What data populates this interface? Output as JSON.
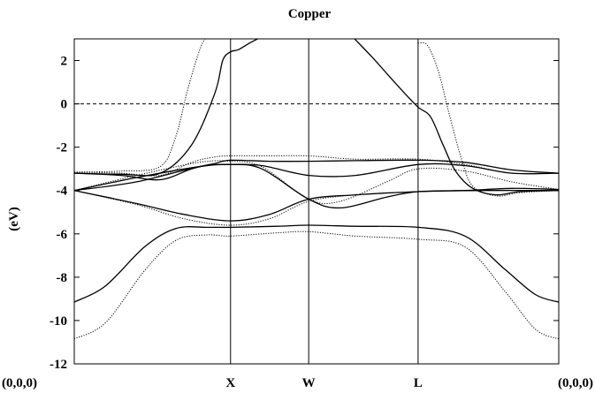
{
  "chart_data": {
    "type": "line",
    "title": "Copper",
    "xlabel": "",
    "ylabel": "(eV)",
    "ylim": [
      -12,
      3
    ],
    "yticks": [
      "2",
      "0",
      "-2",
      "-4",
      "-6",
      "-8",
      "-10",
      "-12"
    ],
    "ytick_values": [
      2,
      0,
      -2,
      -4,
      -6,
      -8,
      -10,
      -12
    ],
    "x_points": [
      "(0,0,0)",
      "X",
      "W",
      "L",
      "(0,0,0)"
    ],
    "x_point_positions": [
      0,
      1,
      1.5,
      2.2,
      3.1
    ],
    "fermi_level": 0,
    "grid": false,
    "series": [
      {
        "style": "solid",
        "bands": [
          [
            [
              0,
              -9.15
            ],
            [
              0.2,
              -8.4
            ],
            [
              0.45,
              -6.6
            ],
            [
              0.65,
              -5.75
            ],
            [
              0.85,
              -5.7
            ],
            [
              1.0,
              -5.7
            ],
            [
              1.3,
              -5.65
            ],
            [
              1.5,
              -5.6
            ],
            [
              1.8,
              -5.65
            ],
            [
              2.2,
              -5.7
            ],
            [
              2.5,
              -6.1
            ],
            [
              2.75,
              -7.6
            ],
            [
              2.95,
              -8.8
            ],
            [
              3.1,
              -9.15
            ]
          ],
          [
            [
              0,
              -4.0
            ],
            [
              0.4,
              -4.6
            ],
            [
              0.7,
              -5.1
            ],
            [
              1.0,
              -5.4
            ],
            [
              1.25,
              -5.1
            ],
            [
              1.5,
              -4.4
            ],
            [
              1.8,
              -4.2
            ],
            [
              2.2,
              -4.05
            ],
            [
              2.6,
              -4.0
            ],
            [
              3.1,
              -4.0
            ]
          ],
          [
            [
              0,
              -4.0
            ],
            [
              0.4,
              -3.4
            ],
            [
              0.8,
              -2.9
            ],
            [
              1.0,
              -2.8
            ],
            [
              1.2,
              -3.0
            ],
            [
              1.5,
              -4.4
            ],
            [
              1.7,
              -4.8
            ],
            [
              2.0,
              -4.3
            ],
            [
              2.2,
              -4.05
            ],
            [
              2.5,
              -4.0
            ],
            [
              2.8,
              -3.9
            ],
            [
              3.1,
              -3.95
            ]
          ],
          [
            [
              0,
              -4.0
            ],
            [
              0.4,
              -3.6
            ],
            [
              0.8,
              -2.9
            ],
            [
              1.0,
              -2.8
            ],
            [
              1.2,
              -2.85
            ],
            [
              1.5,
              -3.3
            ],
            [
              1.8,
              -3.3
            ],
            [
              2.2,
              -2.8
            ],
            [
              2.5,
              -2.85
            ],
            [
              2.8,
              -3.2
            ],
            [
              3.1,
              -3.2
            ]
          ],
          [
            [
              0,
              -3.2
            ],
            [
              0.3,
              -3.3
            ],
            [
              0.55,
              -3.5
            ],
            [
              0.75,
              -3.0
            ],
            [
              0.9,
              -2.75
            ],
            [
              1.0,
              -2.6
            ],
            [
              1.25,
              -2.65
            ],
            [
              1.5,
              -2.65
            ],
            [
              1.8,
              -2.62
            ],
            [
              2.2,
              -2.6
            ],
            [
              2.5,
              -2.7
            ],
            [
              2.8,
              -3.05
            ],
            [
              3.1,
              -3.2
            ]
          ],
          [
            [
              0,
              -3.2
            ],
            [
              0.3,
              -3.25
            ],
            [
              0.55,
              -3.2
            ],
            [
              0.75,
              -1.9
            ],
            [
              0.9,
              0.5
            ],
            [
              0.95,
              2.0
            ],
            [
              1.0,
              2.4
            ],
            [
              1.05,
              2.5
            ],
            [
              1.12,
              2.8
            ],
            [
              1.2,
              3.1
            ]
          ],
          [
            [
              1.78,
              3.1
            ],
            [
              1.9,
              2.2
            ],
            [
              2.0,
              1.4
            ],
            [
              2.1,
              0.6
            ],
            [
              2.2,
              -0.15
            ],
            [
              2.28,
              -0.6
            ],
            [
              2.36,
              -1.9
            ],
            [
              2.44,
              -3.1
            ],
            [
              2.55,
              -3.9
            ],
            [
              2.7,
              -4.2
            ],
            [
              2.85,
              -4.05
            ],
            [
              3.1,
              -4.0
            ]
          ]
        ]
      },
      {
        "style": "dotted",
        "bands": [
          [
            [
              0,
              -10.85
            ],
            [
              0.2,
              -10.1
            ],
            [
              0.45,
              -7.7
            ],
            [
              0.65,
              -6.3
            ],
            [
              0.85,
              -6.05
            ],
            [
              1.0,
              -6.1
            ],
            [
              1.3,
              -5.95
            ],
            [
              1.5,
              -5.9
            ],
            [
              1.8,
              -6.1
            ],
            [
              2.2,
              -6.25
            ],
            [
              2.5,
              -6.6
            ],
            [
              2.75,
              -8.6
            ],
            [
              2.95,
              -10.4
            ],
            [
              3.1,
              -10.85
            ]
          ],
          [
            [
              0,
              -4.0
            ],
            [
              0.4,
              -4.65
            ],
            [
              0.7,
              -5.3
            ],
            [
              1.0,
              -5.6
            ],
            [
              1.25,
              -5.3
            ],
            [
              1.5,
              -4.5
            ],
            [
              1.8,
              -4.2
            ],
            [
              2.2,
              -4.05
            ],
            [
              2.6,
              -4.0
            ],
            [
              3.1,
              -4.0
            ]
          ],
          [
            [
              0,
              -4.0
            ],
            [
              0.4,
              -3.3
            ],
            [
              0.8,
              -2.7
            ],
            [
              1.0,
              -2.65
            ],
            [
              1.2,
              -2.9
            ],
            [
              1.5,
              -4.4
            ],
            [
              1.7,
              -4.5
            ],
            [
              2.0,
              -3.6
            ],
            [
              2.2,
              -3.0
            ],
            [
              2.5,
              -3.1
            ],
            [
              2.8,
              -3.6
            ],
            [
              3.1,
              -3.95
            ]
          ],
          [
            [
              0,
              -3.15
            ],
            [
              0.3,
              -3.2
            ],
            [
              0.55,
              -3.3
            ],
            [
              0.75,
              -2.7
            ],
            [
              0.9,
              -2.45
            ],
            [
              1.0,
              -2.4
            ],
            [
              1.25,
              -2.4
            ],
            [
              1.5,
              -2.4
            ],
            [
              1.8,
              -2.55
            ],
            [
              2.2,
              -2.55
            ],
            [
              2.5,
              -2.8
            ],
            [
              2.8,
              -3.2
            ],
            [
              3.1,
              -3.2
            ]
          ],
          [
            [
              0,
              -3.15
            ],
            [
              0.3,
              -3.1
            ],
            [
              0.55,
              -2.9
            ],
            [
              0.65,
              -1.5
            ],
            [
              0.72,
              0.5
            ],
            [
              0.78,
              2.0
            ],
            [
              0.82,
              2.8
            ],
            [
              0.85,
              3.1
            ]
          ],
          [
            [
              2.2,
              2.8
            ],
            [
              2.26,
              2.7
            ],
            [
              2.33,
              1.5
            ],
            [
              2.4,
              -0.5
            ],
            [
              2.48,
              -2.6
            ],
            [
              2.55,
              -3.8
            ],
            [
              2.7,
              -4.25
            ],
            [
              2.85,
              -4.1
            ],
            [
              3.1,
              -4.0
            ]
          ]
        ]
      }
    ]
  }
}
